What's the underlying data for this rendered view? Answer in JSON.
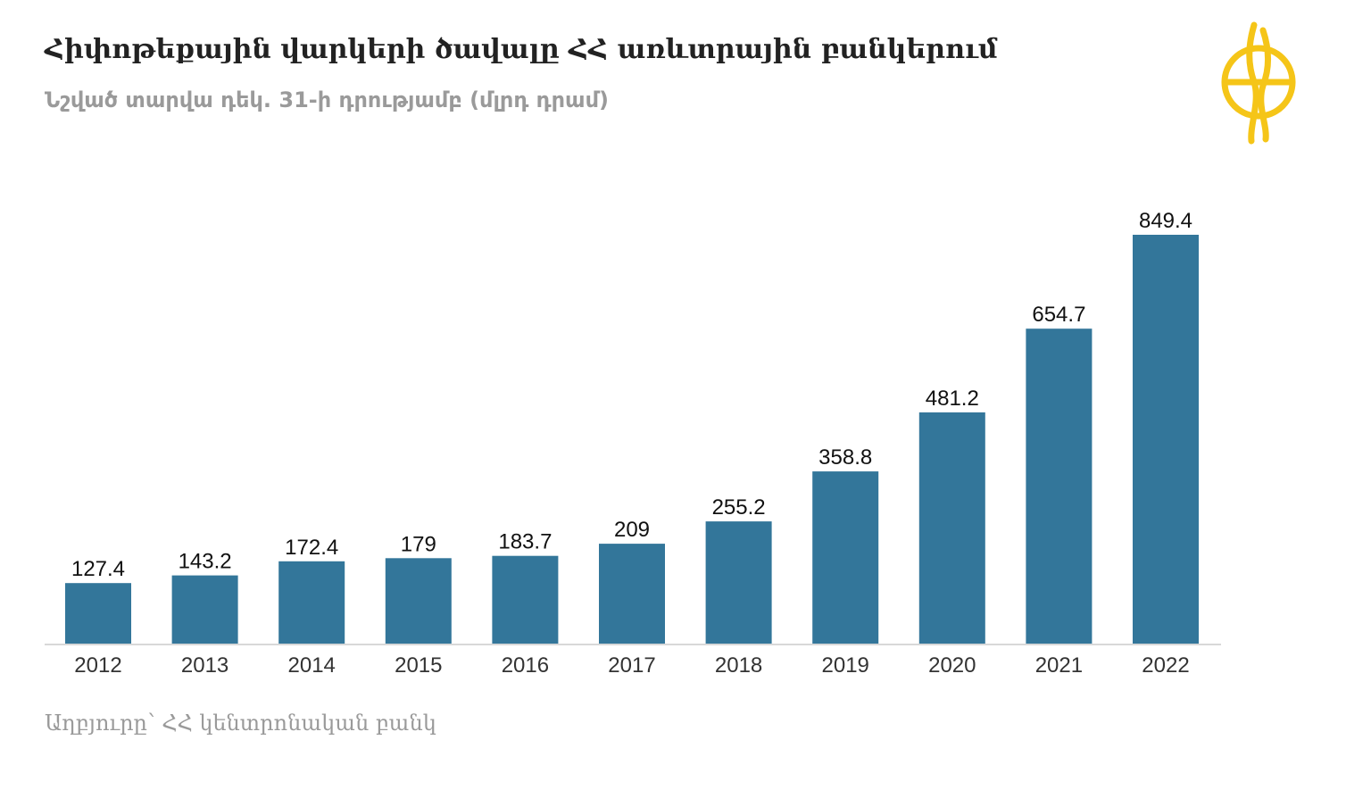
{
  "header": {
    "title": "Հիփոթեքային վարկերի ծավալը ՀՀ առևտրային բանկերում",
    "subtitle": "Նշված տարվա դեկ. 31-ի դրությամբ (մլրդ դրամ)"
  },
  "logo": {
    "icon": "publisher-logo-icon",
    "color": "#f5c518"
  },
  "footer": {
    "source": "Աղբյուրը՝ ՀՀ կենտրոնական բանկ"
  },
  "colors": {
    "bar": "#33769a",
    "baseline": "#d8d8d8",
    "label": "#111111"
  },
  "chart_data": {
    "type": "bar",
    "categories": [
      "2012",
      "2013",
      "2014",
      "2015",
      "2016",
      "2017",
      "2018",
      "2019",
      "2020",
      "2021",
      "2022"
    ],
    "values": [
      127.4,
      143.2,
      172.4,
      179,
      183.7,
      209,
      255.2,
      358.8,
      481.2,
      654.7,
      849.4
    ],
    "data_labels": [
      "127.4",
      "143.2",
      "172.4",
      "179",
      "183.7",
      "209",
      "255.2",
      "358.8",
      "481.2",
      "654.7",
      "849.4"
    ],
    "title": "Հիփոթեքային վարկերի ծավալը ՀՀ առևտրային բանկերում",
    "subtitle": "Նշված տարվա դեկ. 31-ի դրությամբ (մլրդ դրամ)",
    "xlabel": "",
    "ylabel": "",
    "ylim": [
      0,
      849.4
    ],
    "grid": false,
    "legend": "none"
  }
}
